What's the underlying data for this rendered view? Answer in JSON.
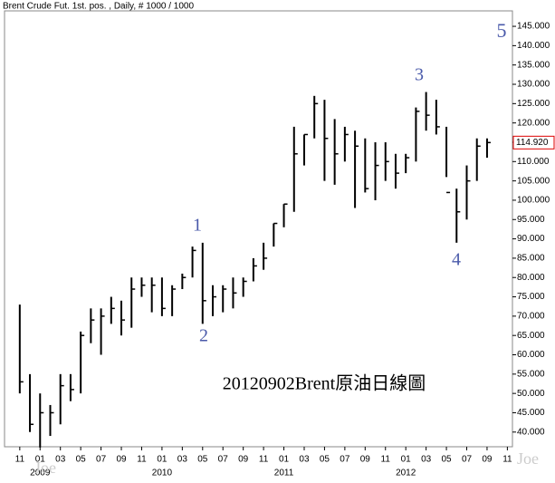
{
  "chart_data": {
    "type": "ohlc",
    "title": "Brent Crude Fut. 1st. pos. , Daily, # 1000 / 1000",
    "x": [
      "2008-11",
      "2008-12",
      "2009-01",
      "2009-02",
      "2009-03",
      "2009-04",
      "2009-05",
      "2009-06",
      "2009-07",
      "2009-08",
      "2009-09",
      "2009-10",
      "2009-11",
      "2009-12",
      "2010-01",
      "2010-02",
      "2010-03",
      "2010-04",
      "2010-05",
      "2010-06",
      "2010-07",
      "2010-08",
      "2010-09",
      "2010-10",
      "2010-11",
      "2010-12",
      "2011-01",
      "2011-02",
      "2011-03",
      "2011-04",
      "2011-05",
      "2011-06",
      "2011-07",
      "2011-08",
      "2011-09",
      "2011-10",
      "2011-11",
      "2011-12",
      "2012-01",
      "2012-02",
      "2012-03",
      "2012-04",
      "2012-05",
      "2012-06",
      "2012-07",
      "2012-08",
      "2012-09"
    ],
    "high": [
      73,
      55,
      50,
      47,
      55,
      55,
      66,
      72,
      72,
      75,
      74,
      80,
      80,
      80,
      80,
      78,
      81,
      88,
      89,
      78,
      78,
      80,
      80,
      85,
      89,
      94,
      99,
      119,
      117,
      127,
      126,
      121,
      119,
      118,
      116,
      115,
      115,
      112,
      112,
      124,
      128,
      126,
      119,
      103,
      109,
      116,
      116
    ],
    "low": [
      50,
      40,
      36,
      39,
      42,
      48,
      50,
      63,
      60,
      68,
      65,
      67,
      75,
      71,
      70,
      70,
      77,
      80,
      68,
      70,
      71,
      72,
      75,
      79,
      82,
      88,
      93,
      97,
      109,
      116,
      105,
      104,
      110,
      98,
      102,
      100,
      105,
      103,
      107,
      110,
      118,
      117,
      106,
      89,
      95,
      105,
      111
    ],
    "close": [
      53,
      42,
      45,
      45,
      52,
      51,
      65,
      69,
      70,
      72,
      69,
      77,
      78,
      78,
      72,
      77,
      80,
      87,
      74,
      75,
      77,
      76,
      79,
      83,
      85,
      94,
      99,
      112,
      117,
      125,
      116,
      112,
      117,
      114,
      103,
      109,
      110,
      107,
      111,
      123,
      122,
      119,
      102,
      97,
      105,
      114,
      114.92
    ],
    "color": "#000000",
    "ylim": [
      36.2,
      149
    ],
    "yticks": [
      {
        "value": 40,
        "label": "40.000"
      },
      {
        "value": 45,
        "label": "45.000"
      },
      {
        "value": 50,
        "label": "50.000"
      },
      {
        "value": 55,
        "label": "55.000"
      },
      {
        "value": 60,
        "label": "60.000"
      },
      {
        "value": 65,
        "label": "65.000"
      },
      {
        "value": 70,
        "label": "70.000"
      },
      {
        "value": 75,
        "label": "75.000"
      },
      {
        "value": 80,
        "label": "80.000"
      },
      {
        "value": 85,
        "label": "85.000"
      },
      {
        "value": 90,
        "label": "90.000"
      },
      {
        "value": 95,
        "label": "95.000"
      },
      {
        "value": 100,
        "label": "100.000"
      },
      {
        "value": 105,
        "label": "105.000"
      },
      {
        "value": 110,
        "label": "110.000"
      },
      {
        "value": 115,
        "label": "115.000"
      },
      {
        "value": 120,
        "label": "120.000"
      },
      {
        "value": 125,
        "label": "125.000"
      },
      {
        "value": 130,
        "label": "130.000"
      },
      {
        "value": 135,
        "label": "135.000"
      },
      {
        "value": 140,
        "label": "140.000"
      },
      {
        "value": 145,
        "label": "145.000"
      }
    ],
    "xlim": [
      "2008-10",
      "2012-12"
    ],
    "xticks": [
      {
        "value": "2008-11",
        "label": "11"
      },
      {
        "value": "2009-01",
        "label": "01"
      },
      {
        "value": "2009-03",
        "label": "03"
      },
      {
        "value": "2009-05",
        "label": "05"
      },
      {
        "value": "2009-07",
        "label": "07"
      },
      {
        "value": "2009-09",
        "label": "09"
      },
      {
        "value": "2009-11",
        "label": "11"
      },
      {
        "value": "2010-01",
        "label": "01"
      },
      {
        "value": "2010-03",
        "label": "03"
      },
      {
        "value": "2010-05",
        "label": "05"
      },
      {
        "value": "2010-07",
        "label": "07"
      },
      {
        "value": "2010-09",
        "label": "09"
      },
      {
        "value": "2010-11",
        "label": "11"
      },
      {
        "value": "2011-01",
        "label": "01"
      },
      {
        "value": "2011-03",
        "label": "03"
      },
      {
        "value": "2011-05",
        "label": "05"
      },
      {
        "value": "2011-07",
        "label": "07"
      },
      {
        "value": "2011-09",
        "label": "09"
      },
      {
        "value": "2011-11",
        "label": "11"
      },
      {
        "value": "2012-01",
        "label": "01"
      },
      {
        "value": "2012-03",
        "label": "03"
      },
      {
        "value": "2012-05",
        "label": "05"
      },
      {
        "value": "2012-07",
        "label": "07"
      },
      {
        "value": "2012-09",
        "label": "09"
      },
      {
        "value": "2012-11",
        "label": "11"
      }
    ],
    "year_labels": [
      {
        "value": "2009-01",
        "label": "2009"
      },
      {
        "value": "2010-01",
        "label": "2010"
      },
      {
        "value": "2011-01",
        "label": "2011"
      },
      {
        "value": "2012-01",
        "label": "2012"
      }
    ],
    "last_price": {
      "value": 114.92,
      "label": "114.920"
    },
    "annotations": [
      "1",
      "2",
      "3",
      "4",
      "5",
      "20120902Brent原油日線圖"
    ],
    "watermark": "Joe"
  }
}
